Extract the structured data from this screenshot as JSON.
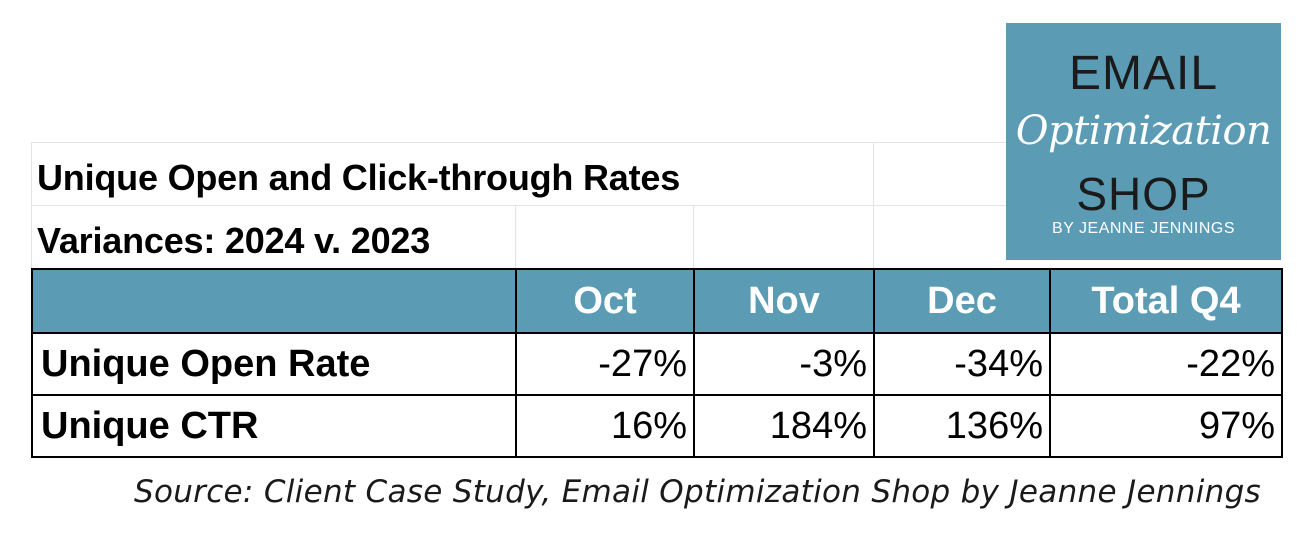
{
  "title": {
    "line1": "Unique Open  and Click-through Rates",
    "line2": "Variances: 2024 v. 2023"
  },
  "logo": {
    "top": "EMAIL",
    "script": "Optimization",
    "middle": "SHOP",
    "byline": "BY JEANNE JENNINGS"
  },
  "source": "Source: Client Case Study, Email Optimization Shop by Jeanne Jennings",
  "colors": {
    "header_fill": "#5b9bb4",
    "header_text": "#ffffff",
    "logo_fill": "#5b9bb4"
  },
  "chart_data": {
    "type": "table",
    "title": "Unique Open  and Click-through Rates",
    "subtitle": "Variances: 2024 v. 2023",
    "columns": [
      "Oct",
      "Nov",
      "Dec",
      "Total Q4"
    ],
    "rows": [
      {
        "label": "Unique Open Rate",
        "values": [
          "-27%",
          "-3%",
          "-34%",
          "-22%"
        ]
      },
      {
        "label": "Unique CTR",
        "values": [
          "16%",
          "184%",
          "136%",
          "97%"
        ]
      }
    ],
    "numeric_values": {
      "Unique Open Rate": [
        -27,
        -3,
        -34,
        -22
      ],
      "Unique CTR": [
        16,
        184,
        136,
        97
      ]
    }
  }
}
